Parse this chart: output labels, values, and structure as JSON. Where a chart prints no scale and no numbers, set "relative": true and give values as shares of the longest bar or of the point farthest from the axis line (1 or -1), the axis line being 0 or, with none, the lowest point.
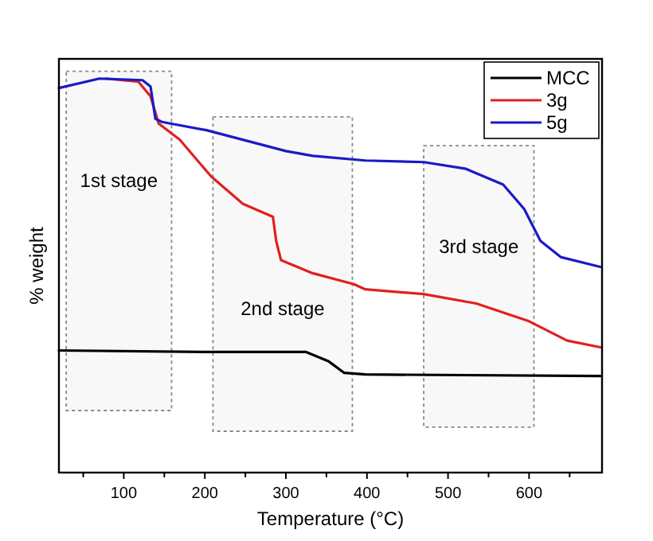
{
  "chart_data": {
    "type": "line",
    "xlabel": "Temperature (°C)",
    "ylabel": "% weight",
    "relative": true,
    "tick_labels": "x",
    "legend": "top right",
    "marker": "none",
    "line_style": "solid",
    "grid": false,
    "xlim": [
      20,
      690
    ],
    "xticks": [
      {
        "value": 50,
        "label": null
      },
      100,
      {
        "value": 150,
        "label": null
      },
      200,
      {
        "value": 250,
        "label": null
      },
      300,
      {
        "value": 350,
        "label": null
      },
      400,
      {
        "value": 450,
        "label": null
      },
      500,
      {
        "value": 550,
        "label": null
      },
      600,
      {
        "value": 650,
        "label": null
      }
    ],
    "series": [
      {
        "name": "MCC",
        "color": "#000000",
        "x": [
          20,
          202,
          325,
          353,
          372,
          398,
          688
        ],
        "values": [
          0.31,
          0.306,
          0.306,
          0.282,
          0.253,
          0.249,
          0.245
        ]
      },
      {
        "name": "3g",
        "color": "#e02020",
        "x": [
          78,
          118,
          133,
          143,
          169,
          208,
          247,
          284,
          288,
          294,
          333,
          384,
          398,
          470,
          535,
          600,
          647,
          688
        ],
        "values": [
          1.0,
          0.992,
          0.955,
          0.886,
          0.845,
          0.751,
          0.682,
          0.649,
          0.588,
          0.539,
          0.506,
          0.478,
          0.465,
          0.453,
          0.429,
          0.384,
          0.335,
          0.318
        ]
      },
      {
        "name": "5g",
        "color": "#1a1ac8",
        "x": [
          20,
          70,
          123,
          133,
          139,
          147,
          202,
          300,
          333,
          398,
          470,
          522,
          568,
          594,
          614,
          639,
          688
        ],
        "values": [
          0.976,
          1.0,
          0.996,
          0.98,
          0.898,
          0.89,
          0.869,
          0.816,
          0.804,
          0.792,
          0.788,
          0.771,
          0.731,
          0.669,
          0.588,
          0.547,
          0.522
        ]
      }
    ],
    "bands": [
      {
        "axis": "x",
        "from": 29,
        "to": 159,
        "label": "1st stage",
        "color": "#888888"
      },
      {
        "axis": "x",
        "from": 210,
        "to": 382,
        "label": "2nd stage",
        "color": "#888888"
      },
      {
        "axis": "x",
        "from": 470,
        "to": 606,
        "label": "3rd stage",
        "color": "#888888"
      }
    ]
  }
}
